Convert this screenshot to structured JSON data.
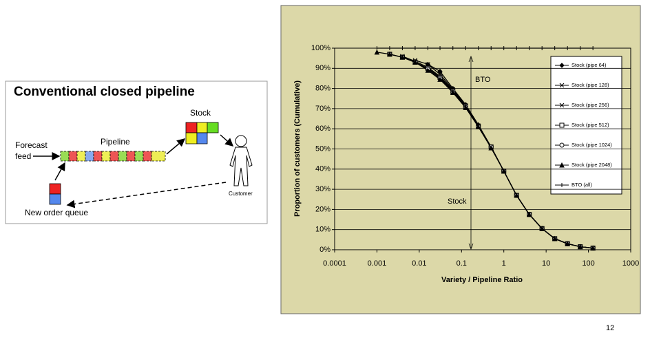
{
  "diagram": {
    "title": "Conventional  closed pipeline",
    "stock": "Stock",
    "pipeline": "Pipeline",
    "forecast": "Forecast",
    "feed": "feed",
    "customer": "Customer",
    "queue": "New order queue"
  },
  "page_number": "12",
  "chart_data": {
    "type": "line",
    "xlabel": "Variety / Pipeline Ratio",
    "ylabel": "Proportion of customers (Cumulative)",
    "annotations": [
      "BTO",
      "Stock"
    ],
    "x": [
      0.001,
      0.002,
      0.004,
      0.008,
      0.016,
      0.031,
      0.0625,
      0.125,
      0.25,
      0.5,
      1,
      2,
      4,
      8,
      16,
      32,
      64,
      128
    ],
    "xlim": [
      0.0001,
      1000
    ],
    "xticks": [
      0.0001,
      0.001,
      0.01,
      0.1,
      1,
      10,
      100,
      1000
    ],
    "log_x": true,
    "ylim": [
      0,
      100
    ],
    "yticks": [
      {
        "value": 0,
        "label": "0%"
      },
      {
        "value": 10,
        "label": "10%"
      },
      {
        "value": 20,
        "label": "20%"
      },
      {
        "value": 30,
        "label": "30%"
      },
      {
        "value": 40,
        "label": "40%"
      },
      {
        "value": 50,
        "label": "50%"
      },
      {
        "value": 60,
        "label": "60%"
      },
      {
        "value": 70,
        "label": "70%"
      },
      {
        "value": 80,
        "label": "80%"
      },
      {
        "value": 90,
        "label": "90%"
      },
      {
        "value": 100,
        "label": "100%"
      }
    ],
    "grid": true,
    "legend": "upper right",
    "series": [
      {
        "name": "Stock (pipe 64)",
        "color": "#000000",
        "marker": "diamond",
        "values": [
          null,
          null,
          null,
          null,
          92,
          88.5,
          80,
          72,
          62,
          51,
          39,
          27,
          17.5,
          10.5,
          5.5,
          3,
          1.5,
          0.8
        ]
      },
      {
        "name": "Stock (pipe 128)",
        "color": "#000000",
        "marker": "x",
        "values": [
          null,
          null,
          null,
          94,
          92,
          87,
          79.5,
          71.5,
          61.5,
          51,
          39,
          27,
          17.5,
          10.5,
          5.5,
          3,
          1.5,
          0.8
        ]
      },
      {
        "name": "Stock (pipe 256)",
        "color": "#000000",
        "marker": "x",
        "values": [
          null,
          null,
          96,
          93.5,
          90.5,
          86,
          79,
          71,
          61.5,
          51,
          39,
          27,
          17.5,
          10.5,
          5.5,
          3,
          1.5,
          0.8
        ]
      },
      {
        "name": "Stock (pipe 512)",
        "color": "#000000",
        "marker": "square",
        "values": [
          null,
          97,
          95.5,
          93,
          90,
          85.5,
          78.5,
          71,
          61,
          51,
          39,
          27,
          17.5,
          10.5,
          5.5,
          3,
          1.5,
          0.8
        ]
      },
      {
        "name": "Stock (pipe 1024)",
        "color": "#000000",
        "marker": "circle",
        "values": [
          null,
          97,
          95.5,
          93,
          89.5,
          85,
          78,
          70.5,
          61,
          51,
          39,
          27,
          17.5,
          10.5,
          5.5,
          3,
          1.5,
          0.8
        ]
      },
      {
        "name": "Stock (pipe 2048)",
        "color": "#000000",
        "marker": "triangle",
        "values": [
          98,
          97,
          95.5,
          93,
          89,
          84.5,
          78,
          70.5,
          61,
          50.5,
          39,
          27,
          17.5,
          10.5,
          5.5,
          3,
          1.5,
          0.8
        ]
      },
      {
        "name": "BTO (all)",
        "color": "#000000",
        "marker": "plus",
        "values": [
          100,
          100,
          100,
          100,
          100,
          100,
          100,
          100,
          100,
          100,
          100,
          100,
          100,
          100,
          100,
          100,
          100,
          100
        ]
      }
    ]
  }
}
